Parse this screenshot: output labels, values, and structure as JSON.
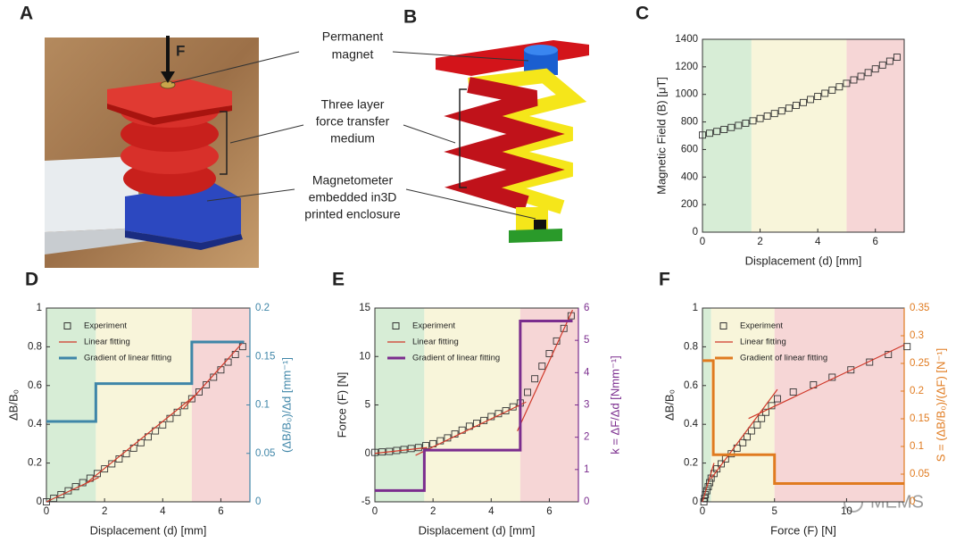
{
  "figure": {
    "panel_labels": [
      "A",
      "B"
    ],
    "force_label": "F",
    "annotations": [
      {
        "lines": [
          "Permanent",
          "magnet"
        ]
      },
      {
        "lines": [
          "Three layer",
          "force transfer",
          "medium"
        ]
      },
      {
        "lines": [
          "Magnetometer",
          "embedded in3D",
          "printed enclosure"
        ]
      }
    ],
    "watermark": "MEMS"
  },
  "chart_data": [
    {
      "type": "scatter",
      "panel_label": "C",
      "xlabel": "Displacement (d) [mm]",
      "ylabel": "Magnetic Field (B) [μT]",
      "xlim": [
        0,
        7
      ],
      "xticks": [
        0,
        2,
        4,
        6
      ],
      "ylim": [
        0,
        1400
      ],
      "yticks": [
        0,
        200,
        400,
        600,
        800,
        1000,
        1200,
        1400
      ],
      "regions": [
        {
          "range": [
            0,
            1.7
          ],
          "color": "#d7edd6"
        },
        {
          "range": [
            1.7,
            5
          ],
          "color": "#f8f5da"
        },
        {
          "range": [
            5,
            7
          ],
          "color": "#f6d6d6"
        }
      ],
      "series": [
        {
          "type": "scatter",
          "color": "#333333",
          "x": [
            0,
            0.25,
            0.5,
            0.75,
            1,
            1.25,
            1.5,
            1.75,
            2,
            2.25,
            2.5,
            2.75,
            3,
            3.25,
            3.5,
            3.75,
            4,
            4.25,
            4.5,
            4.75,
            5,
            5.25,
            5.5,
            5.75,
            6,
            6.25,
            6.5,
            6.75
          ],
          "values": [
            705,
            718,
            731,
            745,
            760,
            775,
            791,
            808,
            825,
            843,
            861,
            880,
            900,
            920,
            941,
            963,
            985,
            1008,
            1031,
            1055,
            1080,
            1105,
            1131,
            1158,
            1185,
            1213,
            1241,
            1270
          ]
        }
      ]
    },
    {
      "type": "combo",
      "panel_label": "D",
      "xlabel": "Displacement (d) [mm]",
      "ylabel": "ΔB/B₀",
      "y2label": "(ΔB/B₀)/Δd [mm⁻¹]",
      "y2color": "#3f86a8",
      "xlim": [
        0,
        7
      ],
      "xticks": [
        0,
        2,
        4,
        6
      ],
      "ylim": [
        0,
        1
      ],
      "yticks": [
        0,
        0.2,
        0.4,
        0.6,
        0.8,
        1
      ],
      "y2lim": [
        0,
        0.2
      ],
      "y2ticks": [
        0,
        0.05,
        0.1,
        0.15,
        0.2
      ],
      "legend": "upper left",
      "regions": [
        {
          "range": [
            0,
            1.7
          ],
          "color": "#d7edd6"
        },
        {
          "range": [
            1.7,
            5
          ],
          "color": "#f8f5da"
        },
        {
          "range": [
            5,
            7
          ],
          "color": "#f6d6d6"
        }
      ],
      "series": [
        {
          "name": "Experiment",
          "type": "scatter",
          "color": "#333333",
          "x": [
            0,
            0.25,
            0.5,
            0.75,
            1,
            1.25,
            1.5,
            1.75,
            2,
            2.25,
            2.5,
            2.75,
            3,
            3.25,
            3.5,
            3.75,
            4,
            4.25,
            4.5,
            4.75,
            5,
            5.25,
            5.5,
            5.75,
            6,
            6.25,
            6.5,
            6.75
          ],
          "values": [
            0,
            0.018,
            0.037,
            0.057,
            0.078,
            0.099,
            0.122,
            0.146,
            0.17,
            0.196,
            0.221,
            0.248,
            0.277,
            0.305,
            0.335,
            0.366,
            0.397,
            0.43,
            0.462,
            0.496,
            0.532,
            0.567,
            0.604,
            0.643,
            0.681,
            0.721,
            0.76,
            0.801
          ]
        },
        {
          "name": "Linear fitting",
          "type": "line",
          "color": "#d0392a",
          "width": 1.2,
          "x": [
            0,
            1.8,
            1.6,
            1.4,
            5.2,
            5.0,
            4.7,
            6.8
          ],
          "values": [
            0,
            0.126,
            null,
            0.1,
            0.56,
            null,
            0.48,
            0.83
          ]
        },
        {
          "name": "Gradient of linear fitting",
          "type": "line",
          "axis": "y2",
          "color": "#3f86a8",
          "width": 3,
          "x": [
            0,
            1.7,
            1.7,
            5,
            5,
            6.8
          ],
          "values": [
            0.083,
            0.083,
            0.122,
            0.122,
            0.165,
            0.165
          ]
        }
      ]
    },
    {
      "type": "combo",
      "panel_label": "E",
      "xlabel": "Displacement (d) [mm]",
      "ylabel": "Force (F) [N]",
      "y2label": "k = ΔF/Δd [Nmm⁻¹]",
      "y2color": "#7b2d8e",
      "xlim": [
        0,
        7
      ],
      "xticks": [
        0,
        2,
        4,
        6
      ],
      "ylim": [
        -5,
        15
      ],
      "yticks": [
        -5,
        0,
        5,
        10,
        15
      ],
      "y2lim": [
        0,
        6
      ],
      "y2ticks": [
        0,
        1,
        2,
        3,
        4,
        5,
        6
      ],
      "legend": "upper left",
      "regions": [
        {
          "range": [
            0,
            1.7
          ],
          "color": "#d7edd6"
        },
        {
          "range": [
            1.7,
            5
          ],
          "color": "#f8f5da"
        },
        {
          "range": [
            5,
            7
          ],
          "color": "#f6d6d6"
        }
      ],
      "series": [
        {
          "name": "Experiment",
          "type": "scatter",
          "color": "#333333",
          "x": [
            0,
            0.25,
            0.5,
            0.75,
            1,
            1.25,
            1.5,
            1.75,
            2,
            2.25,
            2.5,
            2.75,
            3,
            3.25,
            3.5,
            3.75,
            4,
            4.25,
            4.5,
            4.75,
            5,
            5.25,
            5.5,
            5.75,
            6,
            6.25,
            6.5,
            6.75
          ],
          "values": [
            0.1,
            0.15,
            0.2,
            0.3,
            0.4,
            0.5,
            0.6,
            0.8,
            1.0,
            1.3,
            1.6,
            2.0,
            2.4,
            2.8,
            3.1,
            3.4,
            3.8,
            4.1,
            4.4,
            4.8,
            5.2,
            6.3,
            7.7,
            9.0,
            10.3,
            11.6,
            12.9,
            14.2
          ]
        },
        {
          "name": "Linear fitting",
          "type": "line",
          "color": "#d0392a",
          "width": 1.2,
          "x": [
            0,
            1.8,
            1.6,
            1.4,
            5.2,
            5.0,
            4.9,
            6.8
          ],
          "values": [
            0,
            0.6,
            null,
            -0.2,
            5.3,
            null,
            2.3,
            14.8
          ]
        },
        {
          "name": "Gradient of linear fitting",
          "type": "line",
          "axis": "y2",
          "color": "#7b2d8e",
          "width": 3,
          "x": [
            0,
            1.7,
            1.7,
            5,
            5,
            6.8
          ],
          "values": [
            0.35,
            0.35,
            1.6,
            1.6,
            5.6,
            5.6
          ]
        }
      ]
    },
    {
      "type": "combo",
      "panel_label": "F",
      "xlabel": "Force (F) [N]",
      "ylabel": "ΔB/B₀",
      "y2label": "S = (ΔB/B₀)/(ΔF) [N⁻¹]",
      "y2color": "#e07b20",
      "xlim": [
        0,
        14
      ],
      "xticks": [
        0,
        5,
        10
      ],
      "ylim": [
        0,
        1
      ],
      "yticks": [
        0,
        0.2,
        0.4,
        0.6,
        0.8,
        1
      ],
      "y2lim": [
        0,
        0.35
      ],
      "y2ticks": [
        0,
        0.05,
        0.1,
        0.15,
        0.2,
        0.25,
        0.3,
        0.35
      ],
      "legend": "upper left",
      "regions": [
        {
          "range": [
            0,
            0.6
          ],
          "color": "#d7edd6"
        },
        {
          "range": [
            0.6,
            5
          ],
          "color": "#f8f5da"
        },
        {
          "range": [
            5,
            14
          ],
          "color": "#f6d6d6"
        }
      ],
      "series": [
        {
          "name": "Experiment",
          "type": "scatter",
          "color": "#333333",
          "x": [
            0.1,
            0.15,
            0.2,
            0.3,
            0.4,
            0.5,
            0.6,
            0.8,
            1.0,
            1.3,
            1.6,
            2.0,
            2.4,
            2.8,
            3.1,
            3.4,
            3.8,
            4.1,
            4.4,
            4.8,
            5.2,
            6.3,
            7.7,
            9.0,
            10.3,
            11.6,
            12.9,
            14.2
          ],
          "values": [
            0,
            0.018,
            0.037,
            0.057,
            0.078,
            0.099,
            0.122,
            0.146,
            0.17,
            0.196,
            0.221,
            0.248,
            0.277,
            0.305,
            0.335,
            0.366,
            0.397,
            0.43,
            0.462,
            0.496,
            0.532,
            0.567,
            0.604,
            0.643,
            0.681,
            0.721,
            0.76,
            0.801
          ]
        },
        {
          "name": "Linear fitting",
          "type": "line",
          "color": "#d0392a",
          "width": 1.2,
          "x": [
            0,
            0.8,
            0.7,
            0.6,
            5.2,
            4.0,
            3.2,
            14
          ],
          "values": [
            0,
            0.2,
            null,
            0.12,
            0.58,
            null,
            0.43,
            0.81
          ]
        },
        {
          "name": "Gradient of linear fitting",
          "type": "line",
          "axis": "y2",
          "color": "#e07b20",
          "width": 3,
          "x": [
            0,
            0.75,
            0.75,
            5,
            5,
            14
          ],
          "values": [
            0.255,
            0.255,
            0.085,
            0.085,
            0.033,
            0.033
          ]
        }
      ]
    }
  ]
}
